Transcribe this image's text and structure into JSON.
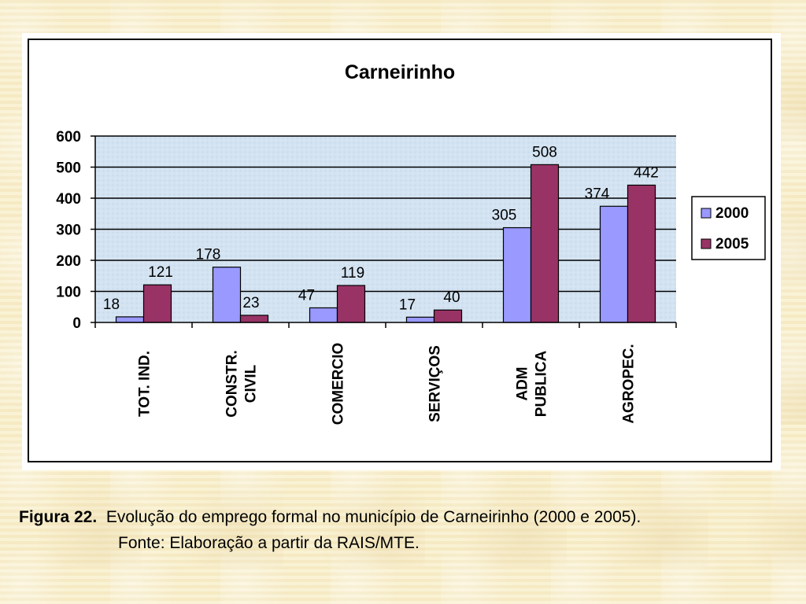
{
  "chart_data": {
    "type": "bar",
    "title": "Carneirinho",
    "categories": [
      [
        "TOT. IND."
      ],
      [
        "CONSTR.",
        "CIVIL"
      ],
      [
        "COMERCIO"
      ],
      [
        "SERVIÇOS"
      ],
      [
        "ADM",
        "PUBLICA"
      ],
      [
        "AGROPEC."
      ]
    ],
    "series": [
      {
        "name": "2000",
        "values": [
          18,
          178,
          47,
          17,
          305,
          374
        ],
        "color": "#9999ff"
      },
      {
        "name": "2005",
        "values": [
          121,
          23,
          119,
          40,
          508,
          442
        ],
        "color": "#993366"
      }
    ],
    "ylim": [
      0,
      600
    ],
    "yticks": [
      0,
      100,
      200,
      300,
      400,
      500,
      600
    ],
    "xlabel": "",
    "ylabel": "",
    "grid": true,
    "legend": "right",
    "plot_background": "#cfe2f3"
  },
  "caption": {
    "label": "Figura 22.",
    "text": "Evolução do emprego formal no município de Carneirinho (2000 e 2005).",
    "source": "Fonte: Elaboração  a partir da RAIS/MTE."
  }
}
